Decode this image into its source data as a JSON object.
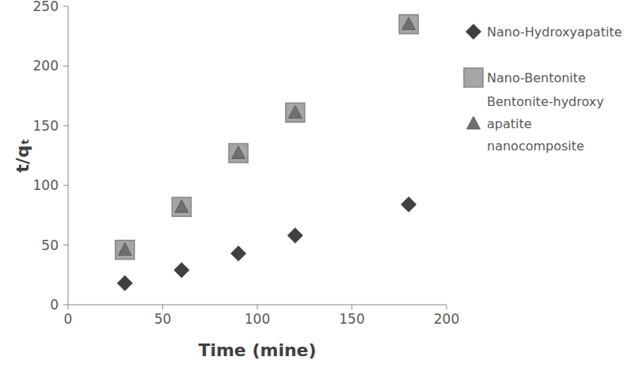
{
  "chart_data": {
    "type": "scatter",
    "x_label": "Time (mine)",
    "y_label": "t/qₜ",
    "xlim": [
      0,
      200
    ],
    "xticks": [
      0,
      50,
      100,
      150,
      200
    ],
    "ylim": [
      0,
      250
    ],
    "yticks": [
      0,
      50,
      100,
      150,
      200,
      250
    ],
    "grid": false,
    "legend": "right",
    "series": [
      {
        "name": "Nano-Hydroxyapatite",
        "color": "#404040",
        "marker": "diamond",
        "x": [
          30,
          60,
          90,
          120,
          180
        ],
        "values": [
          18,
          29,
          43,
          58,
          84
        ]
      },
      {
        "name": "Nano-Bentonite",
        "color": "#a6a6a6",
        "marker": "square",
        "x": [
          30,
          60,
          90,
          120,
          180
        ],
        "values": [
          46,
          82,
          127,
          161,
          235
        ]
      },
      {
        "name": "Bentonite-hydroxy apatite nanocomposite",
        "color": "#6f6f6f",
        "marker": "triangle",
        "x": [
          30,
          60,
          90,
          120,
          180
        ],
        "values": [
          46,
          82,
          127,
          161,
          235
        ]
      }
    ]
  }
}
